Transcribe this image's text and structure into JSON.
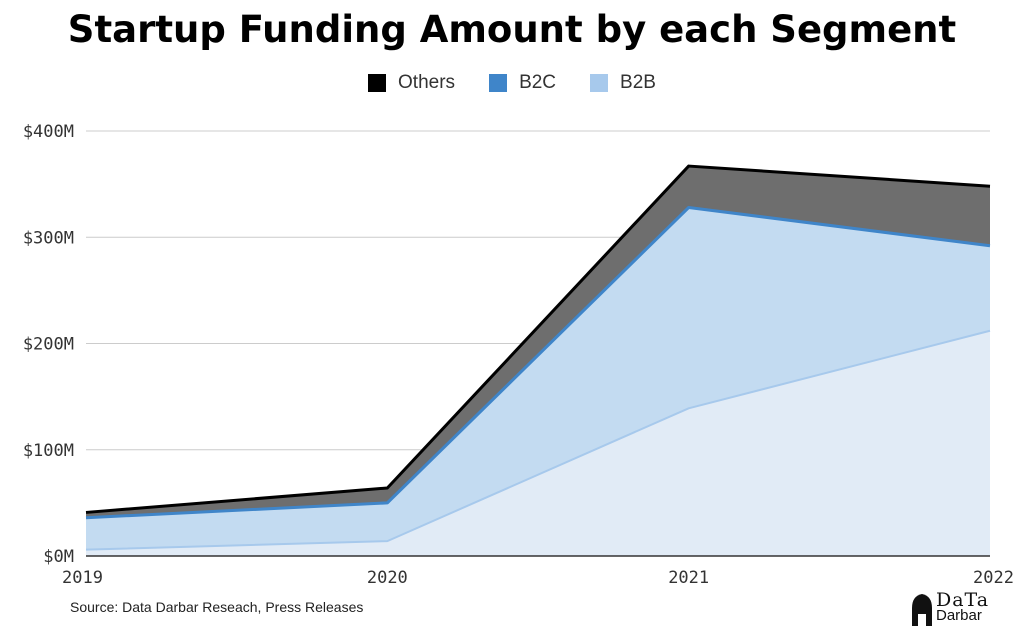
{
  "chart_data": {
    "type": "area",
    "stacked": true,
    "title": "Startup Funding Amount by each Segment",
    "x": [
      "2019",
      "2020",
      "2021",
      "2022"
    ],
    "series": [
      {
        "name": "B2B",
        "values": [
          6,
          14,
          139,
          212
        ],
        "color": "#a7c9ec"
      },
      {
        "name": "B2C",
        "values": [
          30,
          36,
          189,
          80
        ],
        "color": "#3f85c9"
      },
      {
        "name": "Others",
        "values": [
          5,
          14,
          39,
          56
        ],
        "color": "#000000"
      }
    ],
    "legend_order": [
      "Others",
      "B2C",
      "B2B"
    ],
    "y_ticks": [
      "$0M",
      "$100M",
      "$200M",
      "$300M",
      "$400M"
    ],
    "ylim": [
      0,
      400
    ],
    "grid": true,
    "legend_position": "top-center"
  },
  "source": "Source: Data Darbar Reseach, Press Releases",
  "logo": {
    "line1": "DaTa",
    "line2": "Darbar"
  }
}
